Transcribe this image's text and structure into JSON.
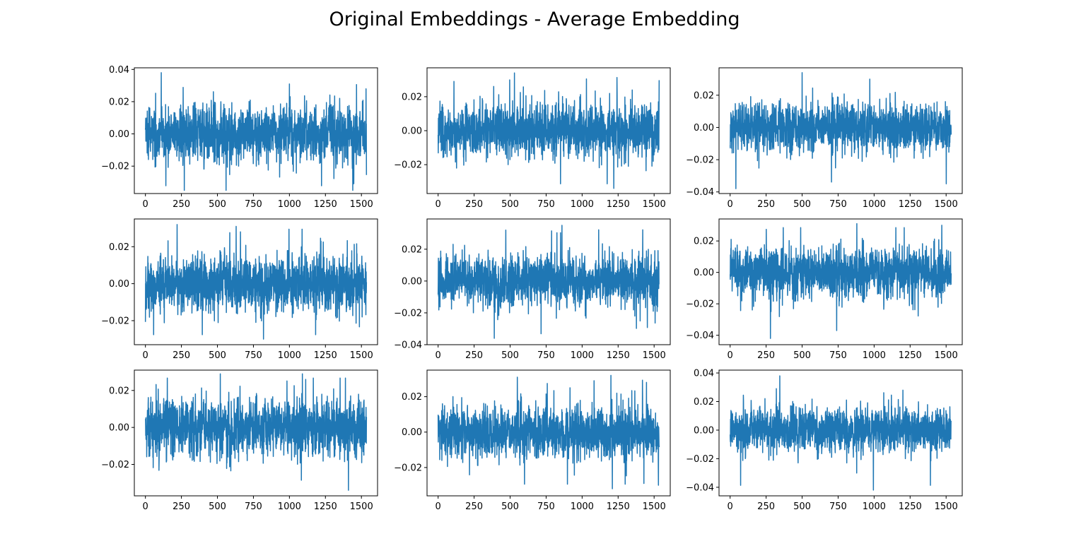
{
  "title": "Original Embeddings - Average Embedding",
  "chart_data": {
    "type": "line",
    "title": "Original Embeddings - Average Embedding",
    "line_color": "#1f77b4",
    "grid": false,
    "layout": "3x3",
    "series_length": 1536,
    "x_range": [
      0,
      1535
    ],
    "subplots": [
      {
        "xlim": [
          -77,
          1612
        ],
        "ylim": [
          -0.037,
          0.041
        ],
        "xticks": [
          0,
          250,
          500,
          750,
          1000,
          1250,
          1500
        ],
        "xtick_labels": [
          "0",
          "250",
          "500",
          "750",
          "1000",
          "1250",
          "1500"
        ],
        "yticks": [
          -0.02,
          0.0,
          0.02,
          0.04
        ],
        "ytick_labels": [
          "−0.02",
          "0.00",
          "0.02",
          "0.04"
        ],
        "y_min": -0.035,
        "y_max": 0.038,
        "noise_std": 0.0082,
        "spikes": [
          [
            110,
            0.038
          ],
          [
            270,
            -0.035
          ],
          [
            560,
            -0.035
          ],
          [
            1440,
            -0.035
          ],
          [
            1000,
            0.031
          ]
        ]
      },
      {
        "xlim": [
          -77,
          1612
        ],
        "ylim": [
          -0.037,
          0.037
        ],
        "xticks": [
          0,
          250,
          500,
          750,
          1000,
          1250,
          1500
        ],
        "xtick_labels": [
          "0",
          "250",
          "500",
          "750",
          "1000",
          "1250",
          "1500"
        ],
        "yticks": [
          -0.02,
          0.0,
          0.02
        ],
        "ytick_labels": [
          "−0.02",
          "0.00",
          "0.02"
        ],
        "y_min": -0.034,
        "y_max": 0.034,
        "noise_std": 0.0078,
        "spikes": [
          [
            530,
            0.034
          ],
          [
            1220,
            -0.034
          ],
          [
            110,
            0.029
          ]
        ]
      },
      {
        "xlim": [
          -77,
          1612
        ],
        "ylim": [
          -0.041,
          0.037
        ],
        "xticks": [
          0,
          250,
          500,
          750,
          1000,
          1250,
          1500
        ],
        "xtick_labels": [
          "0",
          "250",
          "500",
          "750",
          "1000",
          "1250",
          "1500"
        ],
        "yticks": [
          -0.04,
          -0.02,
          0.0,
          0.02
        ],
        "ytick_labels": [
          "−0.04",
          "−0.02",
          "0.00",
          "0.02"
        ],
        "y_min": -0.038,
        "y_max": 0.034,
        "noise_std": 0.0074,
        "spikes": [
          [
            500,
            0.034
          ],
          [
            40,
            -0.038
          ],
          [
            970,
            0.03
          ]
        ]
      },
      {
        "xlim": [
          -77,
          1612
        ],
        "ylim": [
          -0.033,
          0.035
        ],
        "xticks": [
          0,
          250,
          500,
          750,
          1000,
          1250,
          1500
        ],
        "xtick_labels": [
          "0",
          "250",
          "500",
          "750",
          "1000",
          "1250",
          "1500"
        ],
        "yticks": [
          -0.02,
          0.0,
          0.02
        ],
        "ytick_labels": [
          "−0.02",
          "0.00",
          "0.02"
        ],
        "y_min": -0.03,
        "y_max": 0.032,
        "noise_std": 0.0072,
        "spikes": [
          [
            220,
            0.032
          ],
          [
            630,
            0.031
          ],
          [
            820,
            -0.03
          ]
        ]
      },
      {
        "xlim": [
          -77,
          1612
        ],
        "ylim": [
          -0.04,
          0.039
        ],
        "xticks": [
          0,
          250,
          500,
          750,
          1000,
          1250,
          1500
        ],
        "xtick_labels": [
          "0",
          "250",
          "500",
          "750",
          "1000",
          "1250",
          "1500"
        ],
        "yticks": [
          -0.04,
          -0.02,
          0.0,
          0.02
        ],
        "ytick_labels": [
          "−0.04",
          "−0.02",
          "0.00",
          "0.02"
        ],
        "y_min": -0.036,
        "y_max": 0.035,
        "noise_std": 0.0078,
        "spikes": [
          [
            860,
            0.035
          ],
          [
            390,
            -0.036
          ],
          [
            470,
            0.032
          ]
        ]
      },
      {
        "xlim": [
          -77,
          1612
        ],
        "ylim": [
          -0.046,
          0.034
        ],
        "xticks": [
          0,
          250,
          500,
          750,
          1000,
          1250,
          1500
        ],
        "xtick_labels": [
          "0",
          "250",
          "500",
          "750",
          "1000",
          "1250",
          "1500"
        ],
        "yticks": [
          -0.04,
          -0.02,
          0.0,
          0.02
        ],
        "ytick_labels": [
          "−0.04",
          "−0.02",
          "0.00",
          "0.02"
        ],
        "y_min": -0.042,
        "y_max": 0.031,
        "noise_std": 0.0078,
        "spikes": [
          [
            280,
            -0.042
          ],
          [
            740,
            -0.037
          ],
          [
            880,
            0.031
          ],
          [
            1470,
            0.03
          ]
        ]
      },
      {
        "xlim": [
          -77,
          1612
        ],
        "ylim": [
          -0.037,
          0.031
        ],
        "xticks": [
          0,
          250,
          500,
          750,
          1000,
          1250,
          1500
        ],
        "xtick_labels": [
          "0",
          "250",
          "500",
          "750",
          "1000",
          "1250",
          "1500"
        ],
        "yticks": [
          -0.02,
          0.0,
          0.02
        ],
        "ytick_labels": [
          "−0.02",
          "0.00",
          "0.02"
        ],
        "y_min": -0.034,
        "y_max": 0.029,
        "noise_std": 0.0075,
        "spikes": [
          [
            1410,
            -0.034
          ],
          [
            520,
            0.029
          ],
          [
            1090,
            0.029
          ]
        ]
      },
      {
        "xlim": [
          -77,
          1612
        ],
        "ylim": [
          -0.036,
          0.035
        ],
        "xticks": [
          0,
          250,
          500,
          750,
          1000,
          1250,
          1500
        ],
        "xtick_labels": [
          "0",
          "250",
          "500",
          "750",
          "1000",
          "1250",
          "1500"
        ],
        "yticks": [
          -0.02,
          0.0,
          0.02
        ],
        "ytick_labels": [
          "−0.02",
          "0.00",
          "0.02"
        ],
        "y_min": -0.032,
        "y_max": 0.032,
        "noise_std": 0.0072,
        "spikes": [
          [
            1200,
            0.032
          ],
          [
            1210,
            -0.032
          ],
          [
            550,
            0.031
          ],
          [
            1530,
            -0.03
          ]
        ]
      },
      {
        "xlim": [
          -77,
          1612
        ],
        "ylim": [
          -0.046,
          0.042
        ],
        "xticks": [
          0,
          250,
          500,
          750,
          1000,
          1250,
          1500
        ],
        "xtick_labels": [
          "0",
          "250",
          "500",
          "750",
          "1000",
          "1250",
          "1500"
        ],
        "yticks": [
          -0.04,
          -0.02,
          0.0,
          0.02,
          0.04
        ],
        "ytick_labels": [
          "−0.04",
          "−0.02",
          "0.00",
          "0.02",
          "0.04"
        ],
        "y_min": -0.042,
        "y_max": 0.038,
        "noise_std": 0.0078,
        "spikes": [
          [
            345,
            0.038
          ],
          [
            995,
            -0.042
          ],
          [
            1200,
            0.028
          ]
        ]
      }
    ]
  }
}
